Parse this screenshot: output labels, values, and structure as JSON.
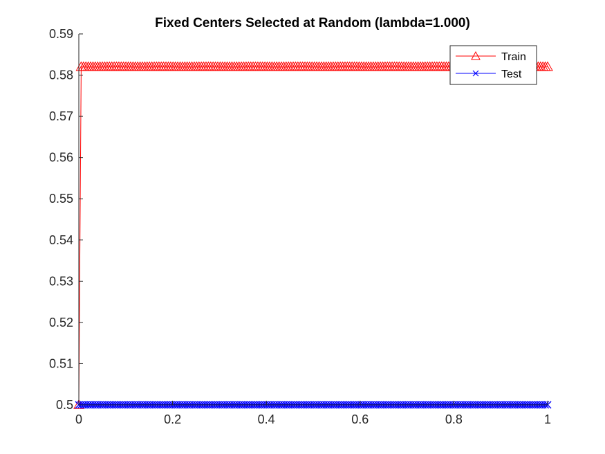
{
  "chart_data": {
    "type": "line",
    "title": "Fixed Centers Selected at Random (lambda=1.000)",
    "xlabel": "",
    "ylabel": "",
    "xlim": [
      0,
      1
    ],
    "ylim": [
      0.5,
      0.59
    ],
    "xticks": [
      0,
      0.2,
      0.4,
      0.6,
      0.8,
      1
    ],
    "xtick_labels": [
      "0",
      "0.2",
      "0.4",
      "0.6",
      "0.8",
      "1"
    ],
    "yticks": [
      0.5,
      0.51,
      0.52,
      0.53,
      0.54,
      0.55,
      0.56,
      0.57,
      0.58,
      0.59
    ],
    "ytick_labels": [
      "0.5",
      "0.51",
      "0.52",
      "0.53",
      "0.54",
      "0.55",
      "0.56",
      "0.57",
      "0.58",
      "0.59"
    ],
    "grid": false,
    "legend_position": "top-right",
    "series": [
      {
        "name": "Train",
        "color": "#ff0000",
        "marker": "triangle",
        "x_start": 0,
        "x_end": 1,
        "n_points": 200,
        "first_value": 0.5,
        "value": 0.582
      },
      {
        "name": "Test",
        "color": "#0000ff",
        "marker": "x",
        "x_start": 0,
        "x_end": 1,
        "n_points": 200,
        "first_value": 0.5,
        "value": 0.5
      }
    ]
  }
}
